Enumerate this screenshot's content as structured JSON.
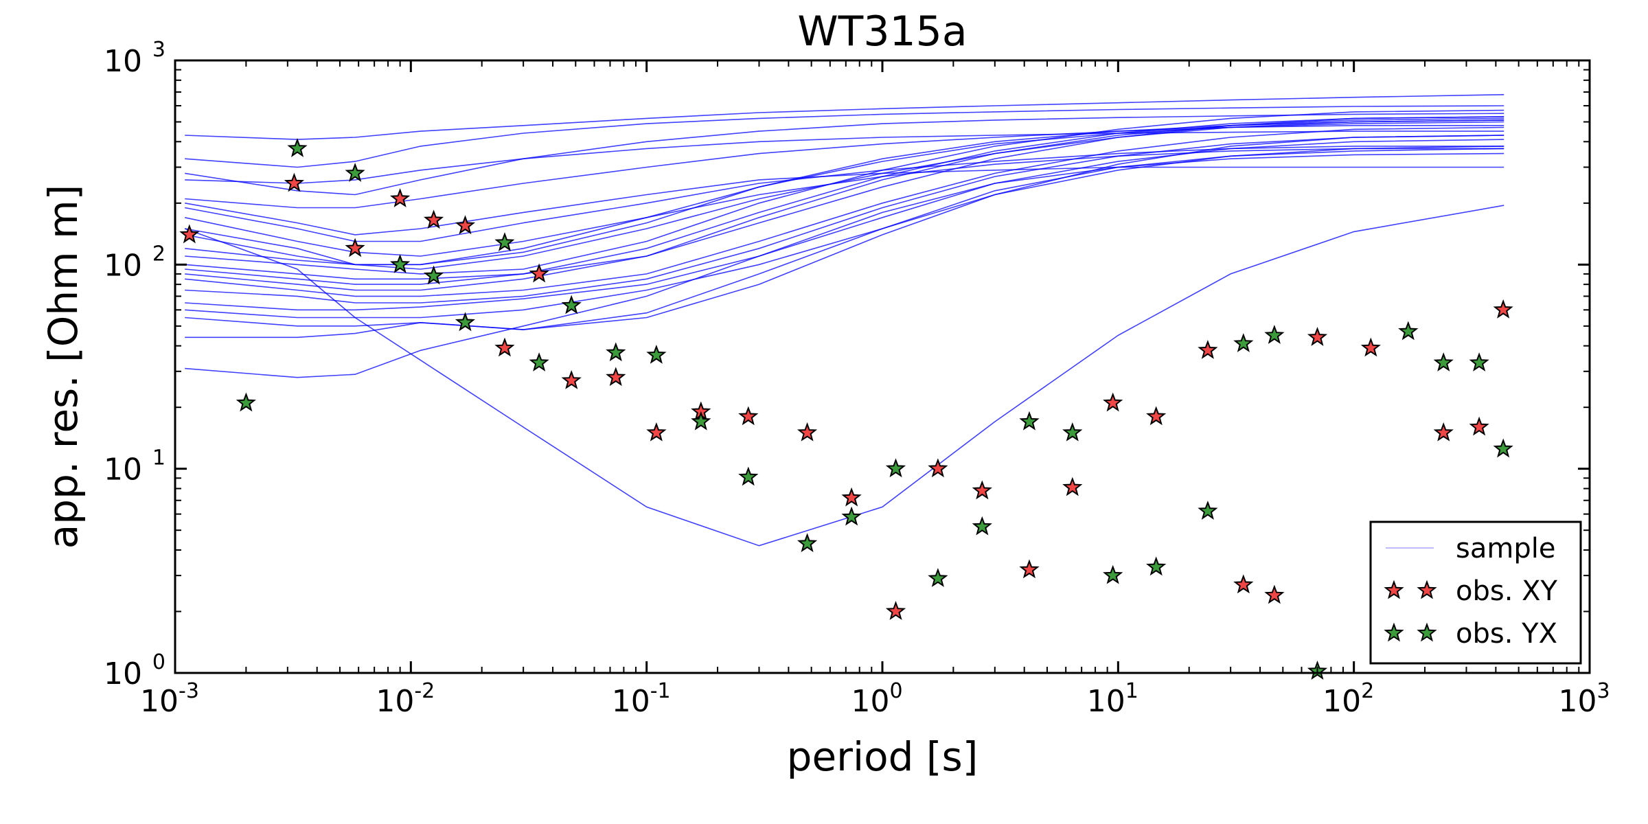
{
  "chart_data": {
    "type": "scatter",
    "title": "WT315a",
    "xlabel": "period [s]",
    "ylabel": "app. res. [Ohm m]",
    "xscale": "log",
    "yscale": "log",
    "xlim": [
      0.001,
      1000
    ],
    "ylim": [
      1,
      1000
    ],
    "x_ticks": [
      {
        "base": "10",
        "exp": "-3",
        "value": 0.001
      },
      {
        "base": "10",
        "exp": "-2",
        "value": 0.01
      },
      {
        "base": "10",
        "exp": "-1",
        "value": 0.1
      },
      {
        "base": "10",
        "exp": "0",
        "value": 1
      },
      {
        "base": "10",
        "exp": "1",
        "value": 10
      },
      {
        "base": "10",
        "exp": "2",
        "value": 100
      },
      {
        "base": "10",
        "exp": "3",
        "value": 1000
      }
    ],
    "y_ticks": [
      {
        "base": "10",
        "exp": "0",
        "value": 1
      },
      {
        "base": "10",
        "exp": "1",
        "value": 10
      },
      {
        "base": "10",
        "exp": "2",
        "value": 100
      },
      {
        "base": "10",
        "exp": "3",
        "value": 1000
      }
    ],
    "grid": false,
    "legend": {
      "placement": "lower-right",
      "entries": [
        {
          "label": "sample",
          "kind": "line",
          "color": "#0000ff"
        },
        {
          "label": "obs. XY",
          "kind": "star",
          "color": "#f04646"
        },
        {
          "label": "obs. YX",
          "kind": "star",
          "color": "#3c9c3c"
        }
      ]
    },
    "sample_curves": {
      "name": "sample",
      "color": "#0000ff",
      "x": [
        0.0011,
        0.0033,
        0.0058,
        0.011,
        0.03,
        0.1,
        0.3,
        1,
        3,
        10,
        30,
        100,
        433
      ],
      "curves": [
        [
          430,
          410,
          420,
          450,
          480,
          520,
          555,
          580,
          600,
          620,
          640,
          660,
          680
        ],
        [
          330,
          300,
          320,
          380,
          440,
          490,
          520,
          545,
          560,
          575,
          585,
          595,
          600
        ],
        [
          280,
          230,
          220,
          260,
          330,
          400,
          450,
          490,
          510,
          525,
          535,
          545,
          550
        ],
        [
          260,
          250,
          260,
          290,
          330,
          370,
          400,
          420,
          430,
          440,
          445,
          450,
          450
        ],
        [
          210,
          190,
          190,
          210,
          250,
          300,
          350,
          390,
          420,
          450,
          470,
          480,
          480
        ],
        [
          200,
          160,
          140,
          150,
          180,
          220,
          260,
          280,
          290,
          300,
          300,
          300,
          300
        ],
        [
          190,
          150,
          130,
          130,
          160,
          200,
          250,
          290,
          320,
          350,
          370,
          380,
          380
        ],
        [
          170,
          130,
          115,
          110,
          130,
          170,
          220,
          270,
          310,
          340,
          360,
          370,
          370
        ],
        [
          150,
          120,
          100,
          95,
          110,
          150,
          210,
          280,
          350,
          420,
          470,
          500,
          510
        ],
        [
          140,
          110,
          100,
          100,
          120,
          170,
          240,
          320,
          390,
          440,
          470,
          490,
          500
        ],
        [
          120,
          105,
          100,
          100,
          115,
          160,
          240,
          330,
          400,
          450,
          480,
          500,
          510
        ],
        [
          110,
          100,
          95,
          90,
          95,
          130,
          200,
          290,
          380,
          460,
          520,
          560,
          570
        ],
        [
          100,
          90,
          85,
          85,
          90,
          110,
          160,
          240,
          330,
          420,
          480,
          520,
          530
        ],
        [
          95,
          85,
          80,
          80,
          90,
          120,
          180,
          270,
          360,
          440,
          490,
          520,
          530
        ],
        [
          90,
          80,
          75,
          75,
          85,
          110,
          170,
          260,
          350,
          430,
          480,
          510,
          520
        ],
        [
          85,
          75,
          70,
          70,
          75,
          90,
          130,
          200,
          280,
          360,
          420,
          460,
          470
        ],
        [
          75,
          70,
          65,
          65,
          70,
          85,
          120,
          190,
          270,
          340,
          390,
          420,
          430
        ],
        [
          65,
          60,
          60,
          62,
          68,
          80,
          110,
          170,
          250,
          320,
          370,
          400,
          410
        ],
        [
          60,
          55,
          55,
          55,
          60,
          75,
          100,
          150,
          220,
          290,
          340,
          370,
          380
        ],
        [
          55,
          50,
          50,
          52,
          48,
          55,
          80,
          140,
          220,
          310,
          380,
          420,
          430
        ],
        [
          44,
          44,
          46,
          52,
          48,
          58,
          90,
          150,
          230,
          300,
          340,
          360,
          370
        ],
        [
          31,
          28,
          29,
          38,
          50,
          70,
          110,
          180,
          250,
          300,
          330,
          345,
          350
        ],
        [
          150,
          95,
          55,
          34,
          16,
          6.5,
          4.2,
          6.5,
          17,
          45,
          90,
          145,
          195
        ]
      ]
    },
    "series": [
      {
        "name": "obs. XY",
        "color": "#f04646",
        "x": [
          0.00115,
          0.0032,
          0.0058,
          0.009,
          0.0125,
          0.017,
          0.025,
          0.035,
          0.048,
          0.074,
          0.11,
          0.17,
          0.27,
          0.48,
          0.74,
          1.14,
          1.72,
          2.65,
          4.2,
          6.4,
          9.5,
          14.5,
          24,
          34,
          46,
          70,
          118,
          240,
          340,
          430
        ],
        "y": [
          140,
          250,
          120,
          210,
          165,
          155,
          39,
          90,
          27,
          28,
          15,
          19,
          18,
          15,
          7.2,
          2.0,
          10,
          7.8,
          3.2,
          8.1,
          21,
          18,
          38,
          2.7,
          2.4,
          44,
          39,
          15,
          16,
          60
        ]
      },
      {
        "name": "obs. YX",
        "color": "#3c9c3c",
        "x": [
          0.002,
          0.0033,
          0.0058,
          0.009,
          0.0125,
          0.017,
          0.025,
          0.035,
          0.048,
          0.074,
          0.11,
          0.17,
          0.27,
          0.48,
          0.74,
          1.14,
          1.72,
          2.65,
          4.2,
          6.4,
          9.5,
          14.5,
          24,
          34,
          46,
          70,
          170,
          240,
          340,
          430
        ],
        "y": [
          21,
          370,
          280,
          100,
          88,
          52,
          128,
          33,
          63,
          37,
          36,
          17,
          9.1,
          4.3,
          5.8,
          10,
          2.9,
          5.2,
          17,
          15,
          3.0,
          3.3,
          6.2,
          41,
          45,
          1.02,
          47,
          33,
          33,
          12.5
        ]
      }
    ]
  }
}
